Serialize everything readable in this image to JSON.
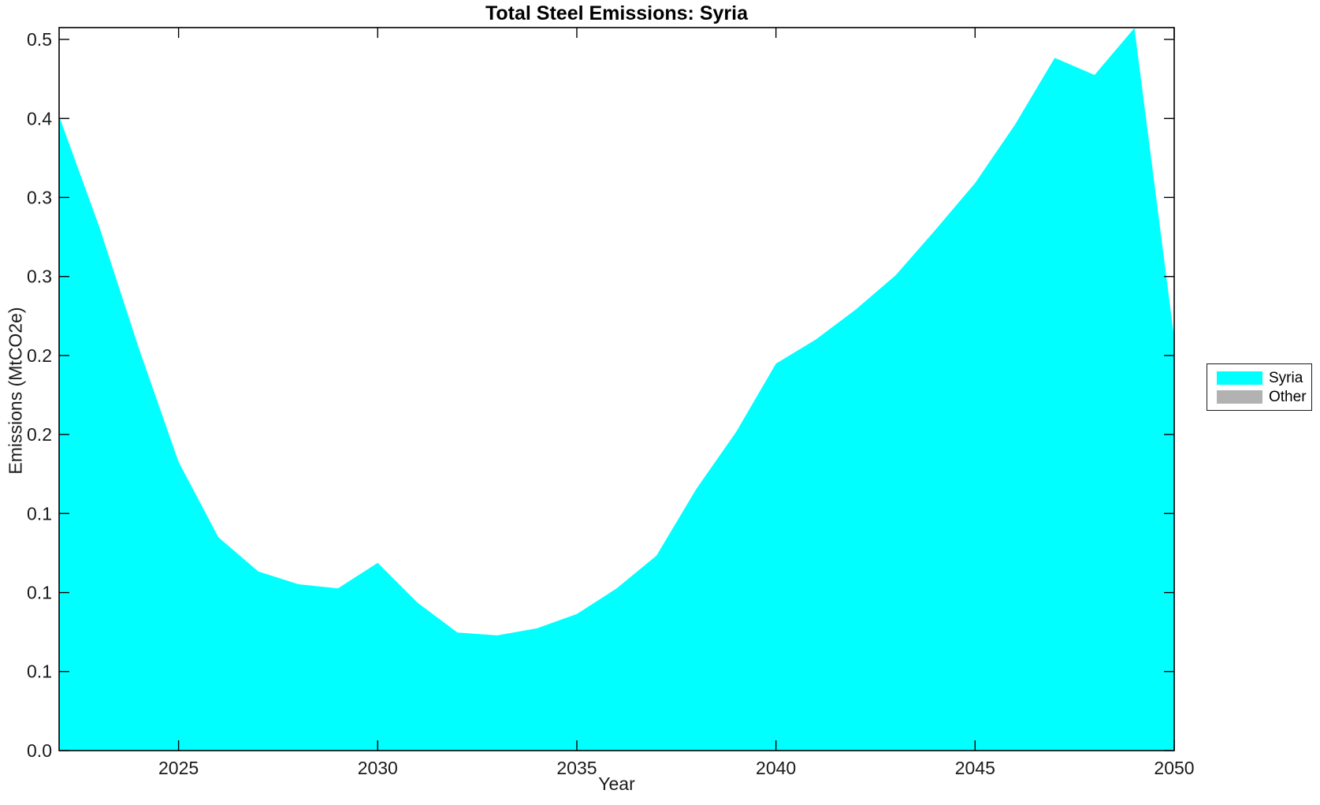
{
  "title": "Total Steel Emissions: Syria",
  "axes": {
    "xlabel": "Year",
    "ylabel": "Emissions (MtCO2e)",
    "xlim": [
      2022,
      2050
    ],
    "ylim": [
      0,
      0.5083
    ],
    "x_ticks": [
      {
        "value": 2025,
        "label": "2025"
      },
      {
        "value": 2030,
        "label": "2030"
      },
      {
        "value": 2035,
        "label": "2035"
      },
      {
        "value": 2040,
        "label": "2040"
      },
      {
        "value": 2045,
        "label": "2045"
      },
      {
        "value": 2050,
        "label": "2050"
      }
    ],
    "y_ticks": [
      {
        "value": 0.0,
        "label": "0.0"
      },
      {
        "value": 0.0556,
        "label": "0.1"
      },
      {
        "value": 0.1111,
        "label": "0.1"
      },
      {
        "value": 0.1667,
        "label": "0.1"
      },
      {
        "value": 0.2222,
        "label": "0.2"
      },
      {
        "value": 0.2778,
        "label": "0.2"
      },
      {
        "value": 0.3333,
        "label": "0.3"
      },
      {
        "value": 0.3889,
        "label": "0.3"
      },
      {
        "value": 0.4444,
        "label": "0.4"
      },
      {
        "value": 0.5,
        "label": "0.5"
      }
    ]
  },
  "legend": {
    "entries": [
      {
        "label": "Syria",
        "color": "#00ffff"
      },
      {
        "label": "Other",
        "color": "#b2b2b2"
      }
    ]
  },
  "colors": {
    "series_syria": "#00ffff",
    "series_other": "#b2b2b2",
    "axis": "#000000",
    "tick_text": "#1a1a1a",
    "background": "#ffffff"
  },
  "chart_data": {
    "type": "area",
    "title": "Total Steel Emissions: Syria",
    "xlabel": "Year",
    "ylabel": "Emissions (MtCO2e)",
    "xlim": [
      2022,
      2050
    ],
    "ylim": [
      0,
      0.5083
    ],
    "grid": false,
    "legend_position": "right-outside",
    "x": [
      2022,
      2023,
      2024,
      2025,
      2026,
      2027,
      2028,
      2029,
      2030,
      2031,
      2032,
      2033,
      2034,
      2035,
      2036,
      2037,
      2038,
      2039,
      2040,
      2041,
      2042,
      2043,
      2044,
      2045,
      2046,
      2047,
      2048,
      2049,
      2050
    ],
    "series": [
      {
        "name": "Syria",
        "color": "#00ffff",
        "values": [
          0.446,
          0.369,
          0.283,
          0.203,
          0.15,
          0.126,
          0.117,
          0.114,
          0.132,
          0.104,
          0.083,
          0.081,
          0.086,
          0.096,
          0.114,
          0.137,
          0.184,
          0.224,
          0.272,
          0.289,
          0.31,
          0.334,
          0.366,
          0.399,
          0.44,
          0.487,
          0.475,
          0.508,
          0.29
        ]
      },
      {
        "name": "Other",
        "color": "#b2b2b2",
        "values": [
          0,
          0,
          0,
          0,
          0,
          0,
          0,
          0,
          0,
          0,
          0,
          0,
          0,
          0,
          0,
          0,
          0,
          0,
          0,
          0,
          0,
          0,
          0,
          0,
          0,
          0,
          0,
          0,
          0
        ]
      }
    ]
  }
}
